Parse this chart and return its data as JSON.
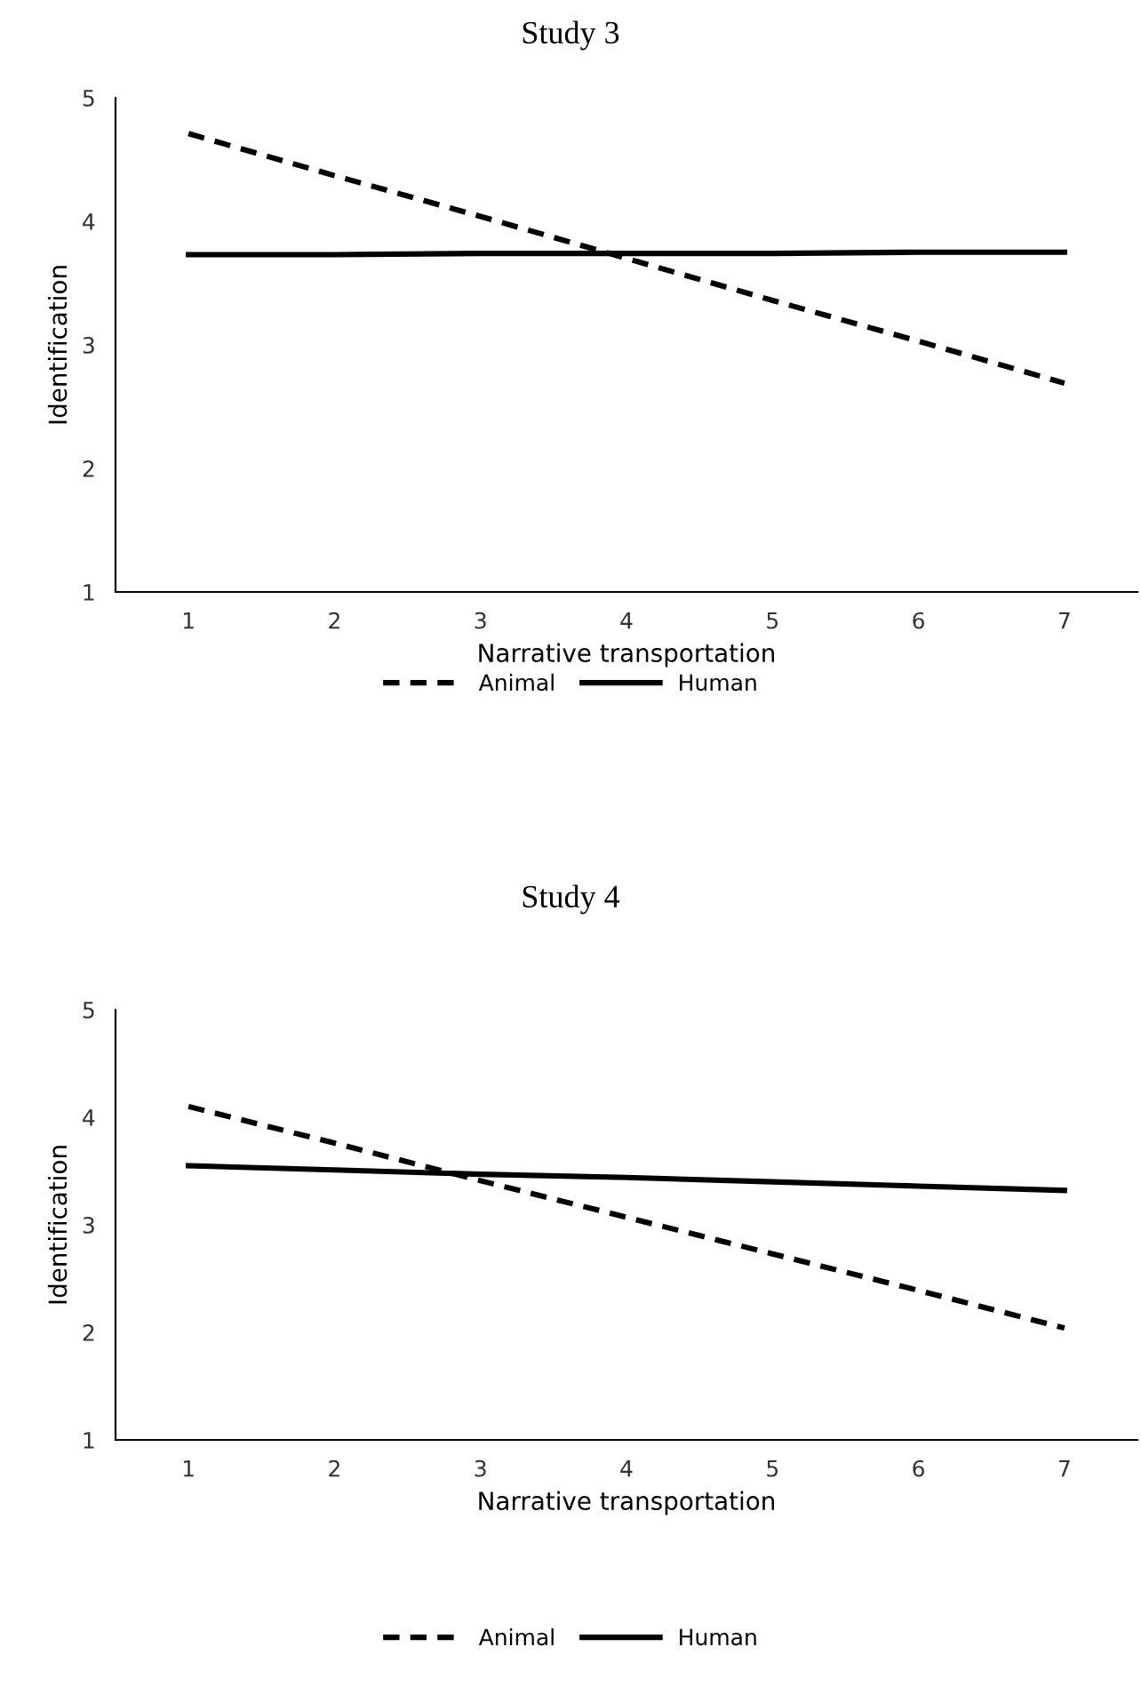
{
  "chart_data": [
    {
      "type": "line",
      "title": "Study 3",
      "xlabel": "Narrative transportation",
      "ylabel": "Identification",
      "categories": [
        "1",
        "2",
        "3",
        "4",
        "5",
        "6",
        "7"
      ],
      "ylim": [
        1,
        5
      ],
      "yticks": [
        1,
        2,
        3,
        4,
        5
      ],
      "legend": "bottom",
      "grid": false,
      "marker": "none",
      "series": [
        {
          "name": "Animal",
          "color": "#000000",
          "line_style": "dashed",
          "values": [
            4.71,
            4.37,
            4.04,
            3.7,
            3.36,
            3.03,
            2.69
          ]
        },
        {
          "name": "Human",
          "color": "#000000",
          "line_style": "solid",
          "values": [
            3.73,
            3.73,
            3.74,
            3.74,
            3.74,
            3.75,
            3.75
          ]
        }
      ]
    },
    {
      "type": "line",
      "title": "Study 4",
      "xlabel": "Narrative transportation",
      "ylabel": "Identification",
      "categories": [
        "1",
        "2",
        "3",
        "4",
        "5",
        "6",
        "7"
      ],
      "ylim": [
        1,
        5
      ],
      "yticks": [
        1,
        2,
        3,
        4,
        5
      ],
      "legend": "bottom",
      "grid": false,
      "marker": "none",
      "series": [
        {
          "name": "Animal",
          "color": "#000000",
          "line_style": "dashed",
          "values": [
            4.1,
            3.76,
            3.41,
            3.07,
            2.73,
            2.39,
            2.04
          ]
        },
        {
          "name": "Human",
          "color": "#000000",
          "line_style": "solid",
          "values": [
            3.55,
            3.51,
            3.47,
            3.44,
            3.4,
            3.36,
            3.32
          ]
        }
      ]
    }
  ]
}
